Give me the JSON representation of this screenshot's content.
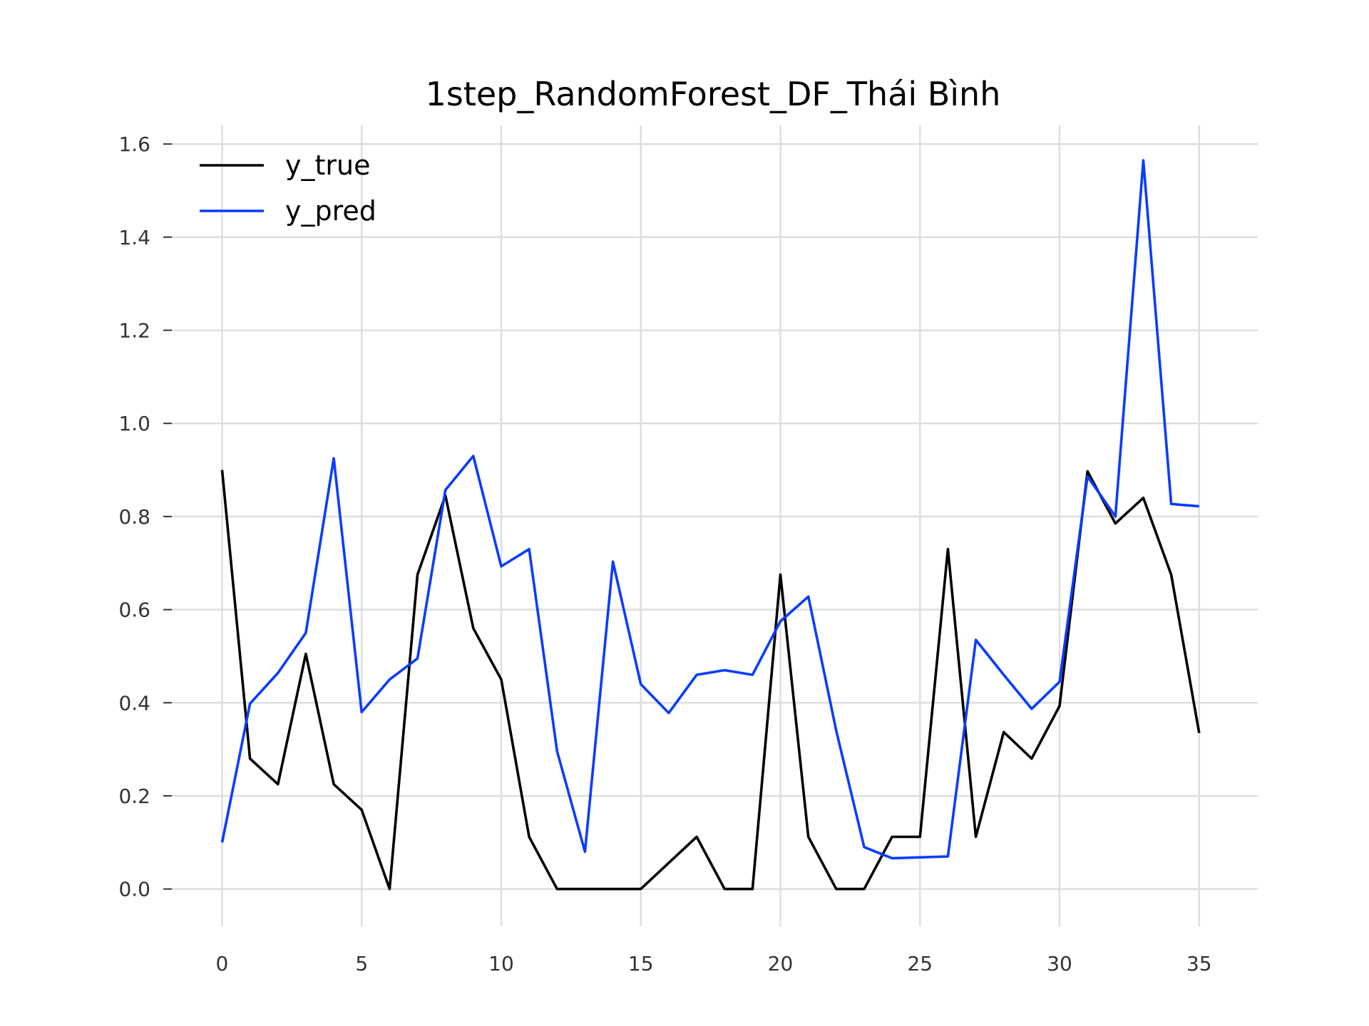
{
  "chart_data": {
    "type": "line",
    "title": "1step_RandomForest_DF_Thái Bình",
    "xlabel": "",
    "ylabel": "",
    "xlim": [
      -1.8,
      37.1
    ],
    "ylim": [
      -0.08,
      1.64
    ],
    "xticks": [
      0,
      5,
      10,
      15,
      20,
      25,
      30,
      35
    ],
    "yticks": [
      0.0,
      0.2,
      0.4,
      0.6,
      0.8,
      1.0,
      1.2,
      1.4,
      1.6
    ],
    "grid": true,
    "legend_position": "top-left",
    "x": [
      0,
      1,
      2,
      3,
      4,
      5,
      6,
      7,
      8,
      9,
      10,
      11,
      12,
      13,
      14,
      15,
      16,
      17,
      18,
      19,
      20,
      21,
      22,
      23,
      24,
      25,
      26,
      27,
      28,
      29,
      30,
      31,
      32,
      33,
      34,
      35
    ],
    "series": [
      {
        "name": "y_true",
        "color": "#000000",
        "values": [
          0.9,
          0.28,
          0.225,
          0.505,
          0.225,
          0.17,
          0.0,
          0.675,
          0.845,
          0.56,
          0.45,
          0.112,
          0.0,
          0.0,
          0.0,
          0.0,
          0.056,
          0.112,
          0.0,
          0.0,
          0.675,
          0.112,
          0.0,
          0.0,
          0.112,
          0.112,
          0.73,
          0.112,
          0.337,
          0.28,
          0.393,
          0.897,
          0.785,
          0.84,
          0.675,
          0.335
        ]
      },
      {
        "name": "y_pred",
        "color": "#0a3cff",
        "values": [
          0.1,
          0.398,
          0.464,
          0.55,
          0.925,
          0.38,
          0.45,
          0.495,
          0.857,
          0.93,
          0.693,
          0.73,
          0.296,
          0.08,
          0.703,
          0.44,
          0.378,
          0.46,
          0.47,
          0.46,
          0.575,
          0.628,
          0.34,
          0.09,
          0.066,
          0.068,
          0.07,
          0.535,
          0.46,
          0.387,
          0.445,
          0.886,
          0.8,
          1.565,
          0.827,
          0.822
        ]
      }
    ]
  }
}
